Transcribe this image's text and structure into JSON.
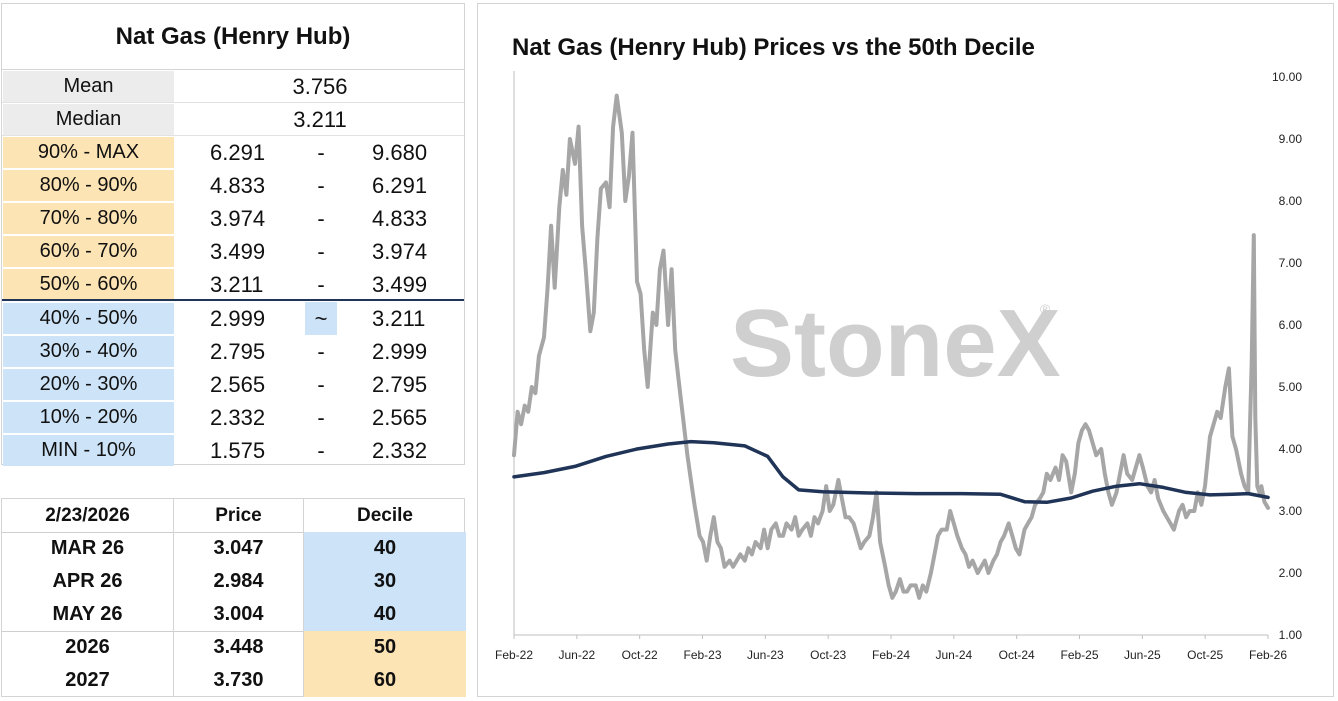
{
  "stats": {
    "title": "Nat Gas (Henry Hub)",
    "mean_label": "Mean",
    "mean_value": "3.756",
    "median_label": "Median",
    "median_value": "3.211",
    "deciles": [
      {
        "label": "90% - MAX",
        "low": "6.291",
        "sep": "-",
        "high": "9.680",
        "group": "upper"
      },
      {
        "label": "80% - 90%",
        "low": "4.833",
        "sep": "-",
        "high": "6.291",
        "group": "upper"
      },
      {
        "label": "70% - 80%",
        "low": "3.974",
        "sep": "-",
        "high": "4.833",
        "group": "upper"
      },
      {
        "label": "60% - 70%",
        "low": "3.499",
        "sep": "-",
        "high": "3.974",
        "group": "upper"
      },
      {
        "label": "50% - 60%",
        "low": "3.211",
        "sep": "-",
        "high": "3.499",
        "group": "upper"
      },
      {
        "label": "40% - 50%",
        "low": "2.999",
        "sep": "~",
        "high": "3.211",
        "group": "lower"
      },
      {
        "label": "30% - 40%",
        "low": "2.795",
        "sep": "-",
        "high": "2.999",
        "group": "lower"
      },
      {
        "label": "20% - 30%",
        "low": "2.565",
        "sep": "-",
        "high": "2.795",
        "group": "lower"
      },
      {
        "label": "10% - 20%",
        "low": "2.332",
        "sep": "-",
        "high": "2.565",
        "group": "lower"
      },
      {
        "label": "MIN - 10%",
        "low": "1.575",
        "sep": "-",
        "high": "2.332",
        "group": "lower"
      }
    ]
  },
  "futures": {
    "date": "2/23/2026",
    "price_header": "Price",
    "decile_header": "Decile",
    "rows": [
      {
        "contract": "MAR 26",
        "price": "3.047",
        "decile": "40"
      },
      {
        "contract": "APR 26",
        "price": "2.984",
        "decile": "30"
      },
      {
        "contract": "MAY 26",
        "price": "3.004",
        "decile": "40"
      },
      {
        "contract": "2026",
        "price": "3.448",
        "decile": "50"
      },
      {
        "contract": "2027",
        "price": "3.730",
        "decile": "60"
      }
    ]
  },
  "colors": {
    "upper_fill": "#fde4b4",
    "lower_fill": "#cce3f8",
    "price_line": "#a6a6a6",
    "decile_line": "#1f3456",
    "watermark": "#cfcfcf"
  },
  "watermark": "StoneX",
  "chart_data": {
    "type": "line",
    "title": "Nat Gas (Henry Hub) Prices vs the 50th Decile",
    "xlabel": "",
    "ylabel": "",
    "ylim": [
      1.0,
      10.0
    ],
    "y_ticks": [
      "1.00",
      "2.00",
      "3.00",
      "4.00",
      "5.00",
      "6.00",
      "7.00",
      "8.00",
      "9.00",
      "10.00"
    ],
    "y_axis_side": "right",
    "grid": false,
    "x_tick_labels": [
      "Feb-22",
      "Jun-22",
      "Oct-22",
      "Feb-23",
      "Jun-23",
      "Oct-23",
      "Feb-24",
      "Jun-24",
      "Oct-24",
      "Feb-25",
      "Jun-25",
      "Oct-25",
      "Feb-26"
    ],
    "x_range": [
      "2022-02-01",
      "2026-02-23"
    ],
    "series": [
      {
        "style": "grey-line",
        "points": [
          [
            "2022-02-01",
            3.9
          ],
          [
            "2022-02-08",
            4.6
          ],
          [
            "2022-02-15",
            4.4
          ],
          [
            "2022-02-22",
            4.7
          ],
          [
            "2022-03-01",
            4.6
          ],
          [
            "2022-03-08",
            5.0
          ],
          [
            "2022-03-15",
            4.9
          ],
          [
            "2022-03-22",
            5.5
          ],
          [
            "2022-04-01",
            5.8
          ],
          [
            "2022-04-08",
            6.6
          ],
          [
            "2022-04-15",
            7.6
          ],
          [
            "2022-04-22",
            6.6
          ],
          [
            "2022-05-01",
            7.9
          ],
          [
            "2022-05-08",
            8.5
          ],
          [
            "2022-05-15",
            8.1
          ],
          [
            "2022-05-22",
            9.0
          ],
          [
            "2022-06-01",
            8.6
          ],
          [
            "2022-06-08",
            9.2
          ],
          [
            "2022-06-15",
            7.6
          ],
          [
            "2022-06-22",
            6.9
          ],
          [
            "2022-07-01",
            5.9
          ],
          [
            "2022-07-08",
            6.2
          ],
          [
            "2022-07-15",
            7.4
          ],
          [
            "2022-07-22",
            8.2
          ],
          [
            "2022-08-01",
            8.3
          ],
          [
            "2022-08-08",
            7.9
          ],
          [
            "2022-08-15",
            9.2
          ],
          [
            "2022-08-22",
            9.7
          ],
          [
            "2022-09-01",
            9.1
          ],
          [
            "2022-09-08",
            8.0
          ],
          [
            "2022-09-15",
            8.4
          ],
          [
            "2022-09-22",
            9.1
          ],
          [
            "2022-10-01",
            6.7
          ],
          [
            "2022-10-08",
            6.5
          ],
          [
            "2022-10-15",
            5.6
          ],
          [
            "2022-10-22",
            5.0
          ],
          [
            "2022-11-01",
            6.2
          ],
          [
            "2022-11-08",
            6.0
          ],
          [
            "2022-11-15",
            6.9
          ],
          [
            "2022-11-22",
            7.2
          ],
          [
            "2022-12-01",
            6.0
          ],
          [
            "2022-12-08",
            6.9
          ],
          [
            "2022-12-15",
            5.6
          ],
          [
            "2022-12-22",
            5.1
          ],
          [
            "2023-01-01",
            4.4
          ],
          [
            "2023-01-08",
            3.9
          ],
          [
            "2023-01-15",
            3.5
          ],
          [
            "2023-01-22",
            3.1
          ],
          [
            "2023-02-01",
            2.6
          ],
          [
            "2023-02-08",
            2.5
          ],
          [
            "2023-02-15",
            2.2
          ],
          [
            "2023-02-22",
            2.6
          ],
          [
            "2023-03-01",
            2.9
          ],
          [
            "2023-03-08",
            2.5
          ],
          [
            "2023-03-15",
            2.4
          ],
          [
            "2023-03-22",
            2.1
          ],
          [
            "2023-04-01",
            2.2
          ],
          [
            "2023-04-08",
            2.1
          ],
          [
            "2023-04-15",
            2.2
          ],
          [
            "2023-04-22",
            2.3
          ],
          [
            "2023-05-01",
            2.2
          ],
          [
            "2023-05-08",
            2.4
          ],
          [
            "2023-05-15",
            2.3
          ],
          [
            "2023-05-22",
            2.5
          ],
          [
            "2023-06-01",
            2.4
          ],
          [
            "2023-06-08",
            2.7
          ],
          [
            "2023-06-15",
            2.4
          ],
          [
            "2023-06-22",
            2.7
          ],
          [
            "2023-07-01",
            2.8
          ],
          [
            "2023-07-08",
            2.6
          ],
          [
            "2023-07-15",
            2.6
          ],
          [
            "2023-07-22",
            2.8
          ],
          [
            "2023-08-01",
            2.7
          ],
          [
            "2023-08-08",
            2.9
          ],
          [
            "2023-08-15",
            2.6
          ],
          [
            "2023-08-22",
            2.7
          ],
          [
            "2023-09-01",
            2.8
          ],
          [
            "2023-09-08",
            2.6
          ],
          [
            "2023-09-15",
            2.9
          ],
          [
            "2023-09-22",
            2.8
          ],
          [
            "2023-10-01",
            3.0
          ],
          [
            "2023-10-08",
            3.4
          ],
          [
            "2023-10-15",
            3.0
          ],
          [
            "2023-10-22",
            3.1
          ],
          [
            "2023-11-01",
            3.5
          ],
          [
            "2023-11-08",
            3.2
          ],
          [
            "2023-11-15",
            2.9
          ],
          [
            "2023-11-22",
            2.9
          ],
          [
            "2023-12-01",
            2.8
          ],
          [
            "2023-12-08",
            2.6
          ],
          [
            "2023-12-15",
            2.4
          ],
          [
            "2023-12-22",
            2.5
          ],
          [
            "2024-01-01",
            2.6
          ],
          [
            "2024-01-08",
            2.9
          ],
          [
            "2024-01-15",
            3.3
          ],
          [
            "2024-01-22",
            2.5
          ],
          [
            "2024-02-01",
            2.1
          ],
          [
            "2024-02-08",
            1.8
          ],
          [
            "2024-02-15",
            1.6
          ],
          [
            "2024-02-22",
            1.7
          ],
          [
            "2024-03-01",
            1.9
          ],
          [
            "2024-03-08",
            1.7
          ],
          [
            "2024-03-15",
            1.7
          ],
          [
            "2024-03-22",
            1.8
          ],
          [
            "2024-04-01",
            1.8
          ],
          [
            "2024-04-08",
            1.6
          ],
          [
            "2024-04-15",
            1.8
          ],
          [
            "2024-04-22",
            1.7
          ],
          [
            "2024-05-01",
            2.0
          ],
          [
            "2024-05-08",
            2.3
          ],
          [
            "2024-05-15",
            2.6
          ],
          [
            "2024-05-22",
            2.7
          ],
          [
            "2024-06-01",
            2.7
          ],
          [
            "2024-06-08",
            3.0
          ],
          [
            "2024-06-15",
            2.8
          ],
          [
            "2024-06-22",
            2.6
          ],
          [
            "2024-07-01",
            2.4
          ],
          [
            "2024-07-08",
            2.3
          ],
          [
            "2024-07-15",
            2.1
          ],
          [
            "2024-07-22",
            2.2
          ],
          [
            "2024-08-01",
            2.0
          ],
          [
            "2024-08-08",
            2.1
          ],
          [
            "2024-08-15",
            2.2
          ],
          [
            "2024-08-22",
            2.0
          ],
          [
            "2024-09-01",
            2.2
          ],
          [
            "2024-09-08",
            2.3
          ],
          [
            "2024-09-15",
            2.5
          ],
          [
            "2024-09-22",
            2.6
          ],
          [
            "2024-10-01",
            2.8
          ],
          [
            "2024-10-08",
            2.6
          ],
          [
            "2024-10-15",
            2.4
          ],
          [
            "2024-10-22",
            2.3
          ],
          [
            "2024-11-01",
            2.7
          ],
          [
            "2024-11-08",
            2.8
          ],
          [
            "2024-11-15",
            2.9
          ],
          [
            "2024-11-22",
            3.1
          ],
          [
            "2024-12-01",
            3.2
          ],
          [
            "2024-12-08",
            3.3
          ],
          [
            "2024-12-15",
            3.6
          ],
          [
            "2024-12-22",
            3.5
          ],
          [
            "2025-01-01",
            3.7
          ],
          [
            "2025-01-08",
            3.5
          ],
          [
            "2025-01-15",
            3.9
          ],
          [
            "2025-01-22",
            3.8
          ],
          [
            "2025-02-01",
            3.3
          ],
          [
            "2025-02-08",
            3.6
          ],
          [
            "2025-02-15",
            4.1
          ],
          [
            "2025-02-22",
            4.3
          ],
          [
            "2025-03-01",
            4.4
          ],
          [
            "2025-03-08",
            4.3
          ],
          [
            "2025-03-15",
            4.1
          ],
          [
            "2025-03-22",
            3.9
          ],
          [
            "2025-04-01",
            4.0
          ],
          [
            "2025-04-08",
            3.6
          ],
          [
            "2025-04-15",
            3.3
          ],
          [
            "2025-04-22",
            3.1
          ],
          [
            "2025-05-01",
            3.3
          ],
          [
            "2025-05-08",
            3.6
          ],
          [
            "2025-05-15",
            3.9
          ],
          [
            "2025-05-22",
            3.6
          ],
          [
            "2025-06-01",
            3.5
          ],
          [
            "2025-06-08",
            3.7
          ],
          [
            "2025-06-15",
            3.9
          ],
          [
            "2025-06-22",
            3.7
          ],
          [
            "2025-07-01",
            3.4
          ],
          [
            "2025-07-08",
            3.3
          ],
          [
            "2025-07-15",
            3.5
          ],
          [
            "2025-07-22",
            3.2
          ],
          [
            "2025-08-01",
            3.0
          ],
          [
            "2025-08-08",
            2.9
          ],
          [
            "2025-08-15",
            2.8
          ],
          [
            "2025-08-22",
            2.7
          ],
          [
            "2025-09-01",
            3.0
          ],
          [
            "2025-09-08",
            3.1
          ],
          [
            "2025-09-15",
            2.9
          ],
          [
            "2025-09-22",
            3.0
          ],
          [
            "2025-10-01",
            3.0
          ],
          [
            "2025-10-08",
            3.3
          ],
          [
            "2025-10-15",
            3.1
          ],
          [
            "2025-10-22",
            3.4
          ],
          [
            "2025-11-01",
            4.2
          ],
          [
            "2025-11-08",
            4.4
          ],
          [
            "2025-11-15",
            4.6
          ],
          [
            "2025-11-22",
            4.5
          ],
          [
            "2025-12-01",
            5.0
          ],
          [
            "2025-12-08",
            5.3
          ],
          [
            "2025-12-15",
            4.2
          ],
          [
            "2025-12-22",
            4.0
          ],
          [
            "2026-01-01",
            3.6
          ],
          [
            "2026-01-08",
            3.4
          ],
          [
            "2026-01-15",
            3.3
          ],
          [
            "2026-01-22",
            5.4
          ],
          [
            "2026-01-26",
            7.45
          ],
          [
            "2026-01-29",
            4.5
          ],
          [
            "2026-02-02",
            3.4
          ],
          [
            "2026-02-06",
            3.3
          ],
          [
            "2026-02-10",
            3.4
          ],
          [
            "2026-02-16",
            3.15
          ],
          [
            "2026-02-23",
            3.05
          ]
        ]
      },
      {
        "style": "navy-line",
        "points": [
          [
            "2022-02-01",
            3.55
          ],
          [
            "2022-04-01",
            3.62
          ],
          [
            "2022-06-01",
            3.72
          ],
          [
            "2022-08-01",
            3.88
          ],
          [
            "2022-10-01",
            4.0
          ],
          [
            "2022-12-01",
            4.08
          ],
          [
            "2023-01-15",
            4.12
          ],
          [
            "2023-03-01",
            4.1
          ],
          [
            "2023-05-01",
            4.05
          ],
          [
            "2023-06-15",
            3.88
          ],
          [
            "2023-07-15",
            3.55
          ],
          [
            "2023-08-15",
            3.34
          ],
          [
            "2023-10-01",
            3.31
          ],
          [
            "2024-01-01",
            3.29
          ],
          [
            "2024-04-01",
            3.28
          ],
          [
            "2024-07-01",
            3.28
          ],
          [
            "2024-09-15",
            3.27
          ],
          [
            "2024-11-01",
            3.15
          ],
          [
            "2024-12-15",
            3.14
          ],
          [
            "2025-02-01",
            3.21
          ],
          [
            "2025-03-15",
            3.32
          ],
          [
            "2025-05-01",
            3.4
          ],
          [
            "2025-06-15",
            3.44
          ],
          [
            "2025-08-01",
            3.38
          ],
          [
            "2025-09-15",
            3.3
          ],
          [
            "2025-11-01",
            3.26
          ],
          [
            "2025-12-15",
            3.27
          ],
          [
            "2026-01-15",
            3.28
          ],
          [
            "2026-02-23",
            3.22
          ]
        ]
      }
    ]
  }
}
